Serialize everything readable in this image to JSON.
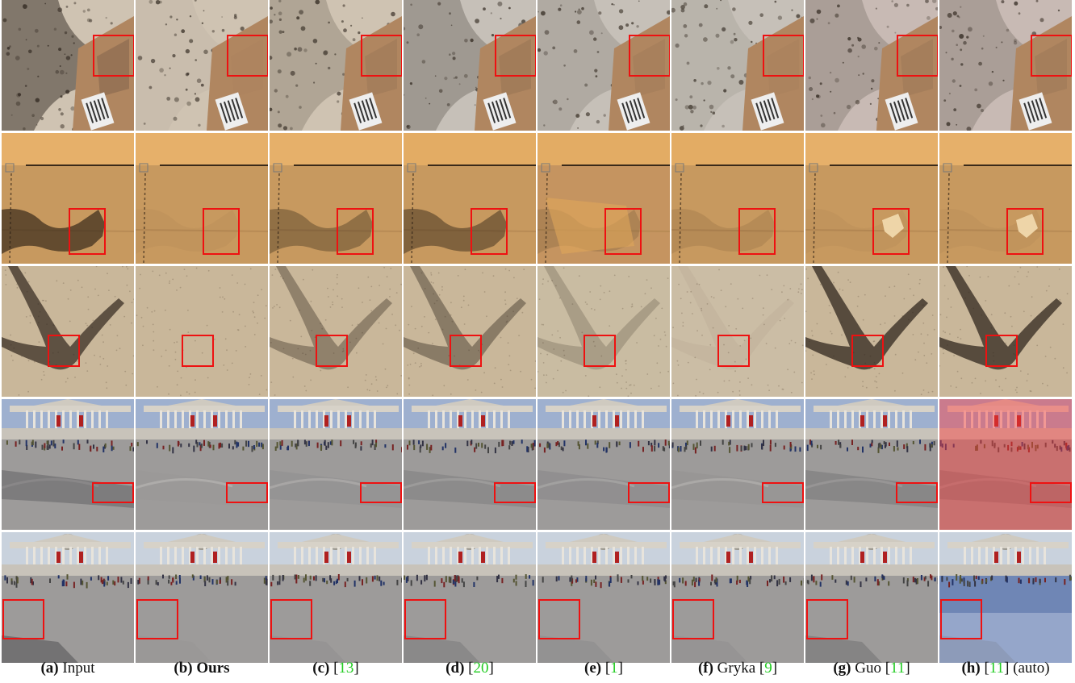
{
  "figure": {
    "columns": [
      {
        "letter": "(a)",
        "name": "Input",
        "name_bold": false,
        "ref": "",
        "suffix": ""
      },
      {
        "letter": "(b)",
        "name": "Ours",
        "name_bold": true,
        "ref": "",
        "suffix": ""
      },
      {
        "letter": "(c)",
        "name": "",
        "name_bold": false,
        "ref": "13",
        "suffix": ""
      },
      {
        "letter": "(d)",
        "name": "",
        "name_bold": false,
        "ref": "20",
        "suffix": ""
      },
      {
        "letter": "(e)",
        "name": "",
        "name_bold": false,
        "ref": "1",
        "suffix": ""
      },
      {
        "letter": "(f)",
        "name": "Gryka",
        "name_bold": false,
        "ref": "9",
        "suffix": ""
      },
      {
        "letter": "(g)",
        "name": "Guo",
        "name_bold": false,
        "ref": "11",
        "suffix": ""
      },
      {
        "letter": "(h)",
        "name": "",
        "name_bold": false,
        "ref": "11",
        "suffix": "(auto)"
      }
    ],
    "rows": [
      {
        "scene": "sand-with-cardboard-box",
        "shadow": "person-shadow"
      },
      {
        "scene": "cardboard-surface",
        "shadow": "hand-shadow"
      },
      {
        "scene": "sand",
        "shadow": "arm-shadow"
      },
      {
        "scene": "trafalgar-square-gallery",
        "shadow": "ground-shadow"
      },
      {
        "scene": "trafalgar-square-gallery-wide",
        "shadow": "corner-shadow"
      }
    ],
    "colors": {
      "highlight_box": "#ee1111",
      "reference_link": "#22cc22"
    }
  }
}
